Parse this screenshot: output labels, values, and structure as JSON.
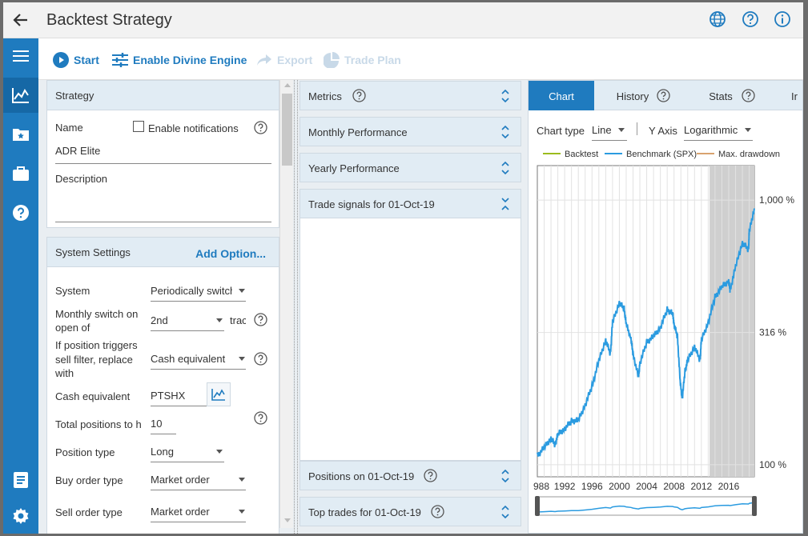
{
  "app": {
    "title": "Backtest Strategy"
  },
  "titlebar_icons": [
    "globe-icon",
    "help-icon",
    "info-icon"
  ],
  "sidebar": {
    "items": [
      "menu-icon",
      "chart-icon",
      "folder-star-icon",
      "briefcase-icon",
      "help-icon"
    ],
    "bottom_items": [
      "report-icon",
      "settings-icon"
    ]
  },
  "toolbar": {
    "start_label": "Start",
    "divine_label": "Enable Divine Engine",
    "export_label": "Export",
    "tradeplan_label": "Trade Plan"
  },
  "strategy": {
    "header": "Strategy",
    "name_label": "Name",
    "notify_label": "Enable notifications",
    "notify_checked": false,
    "name_value": "ADR Elite",
    "description_label": "Description",
    "description_value": ""
  },
  "system_settings": {
    "header": "System Settings",
    "add_option": "Add Option...",
    "rows": {
      "system_label": "System",
      "system_value": "Periodically switch",
      "monthly_label_1": "Monthly switch on",
      "monthly_label_2": "open of",
      "monthly_value": "2nd",
      "monthly_suffix": "trac",
      "position_label_1": "If position triggers",
      "position_label_2": "sell filter, replace",
      "position_label_3": "with",
      "position_value": "Cash equivalent",
      "cash_label": "Cash equivalent",
      "cash_value": "PTSHX",
      "total_label": "Total positions to h",
      "total_value": "10",
      "ptype_label": "Position type",
      "ptype_value": "Long",
      "buy_label": "Buy order type",
      "buy_value": "Market order",
      "sell_label": "Sell order type",
      "sell_value": "Market order"
    }
  },
  "middle": {
    "metrics": "Metrics",
    "monthly": "Monthly Performance",
    "yearly": "Yearly Performance",
    "signals": "Trade signals for 01-Oct-19",
    "positions": "Positions on 01-Oct-19",
    "toptrades": "Top trades for 01-Oct-19"
  },
  "right": {
    "tabs": [
      "Chart",
      "History",
      "Stats",
      "Ir"
    ],
    "chart_type_label": "Chart type",
    "chart_type_value": "Line",
    "yaxis_label": "Y Axis",
    "yaxis_value": "Logarithmic"
  },
  "chart_data": {
    "type": "line",
    "title": "",
    "yscale": "log",
    "ylim": [
      90,
      1350
    ],
    "xlim": [
      1988,
      2019.75
    ],
    "xticks": [
      "988",
      "1992",
      "1996",
      "2000",
      "2004",
      "2008",
      "2012",
      "2016"
    ],
    "yticks": [
      "1,000 %",
      "316 %",
      "100 %"
    ],
    "ytick_values": [
      1000,
      316,
      100
    ],
    "legend": [
      "Backtest",
      "Benchmark (SPX)",
      "Max. drawdown"
    ],
    "legend_colors": [
      "#9bbb1d",
      "#2b9be0",
      "#d9a36f"
    ],
    "shaded_range": [
      2013.2,
      2019.75
    ],
    "series": [
      {
        "name": "Benchmark (SPX)",
        "color": "#2b9be0",
        "x": [
          1988,
          1989,
          1990,
          1990.6,
          1991,
          1992,
          1993,
          1994,
          1995,
          1996,
          1997,
          1998,
          1998.7,
          1999,
          2000,
          2000.7,
          2001,
          2001.7,
          2002,
          2002.8,
          2003,
          2004,
          2005,
          2006,
          2007,
          2007.8,
          2008,
          2008.5,
          2008.9,
          2009.2,
          2009.6,
          2010,
          2011,
          2011.8,
          2012,
          2013,
          2014,
          2015,
          2016,
          2016.2,
          2017,
          2018,
          2018.9,
          2019,
          2019.75
        ],
        "y": [
          108,
          116,
          126,
          119,
          130,
          137,
          146,
          147,
          168,
          198,
          247,
          296,
          262,
          345,
          410,
          388,
          340,
          300,
          262,
          214,
          242,
          290,
          305,
          330,
          385,
          372,
          340,
          305,
          205,
          178,
          225,
          248,
          280,
          248,
          295,
          345,
          430,
          470,
          495,
          455,
          560,
          690,
          650,
          760,
          930
        ]
      }
    ]
  }
}
